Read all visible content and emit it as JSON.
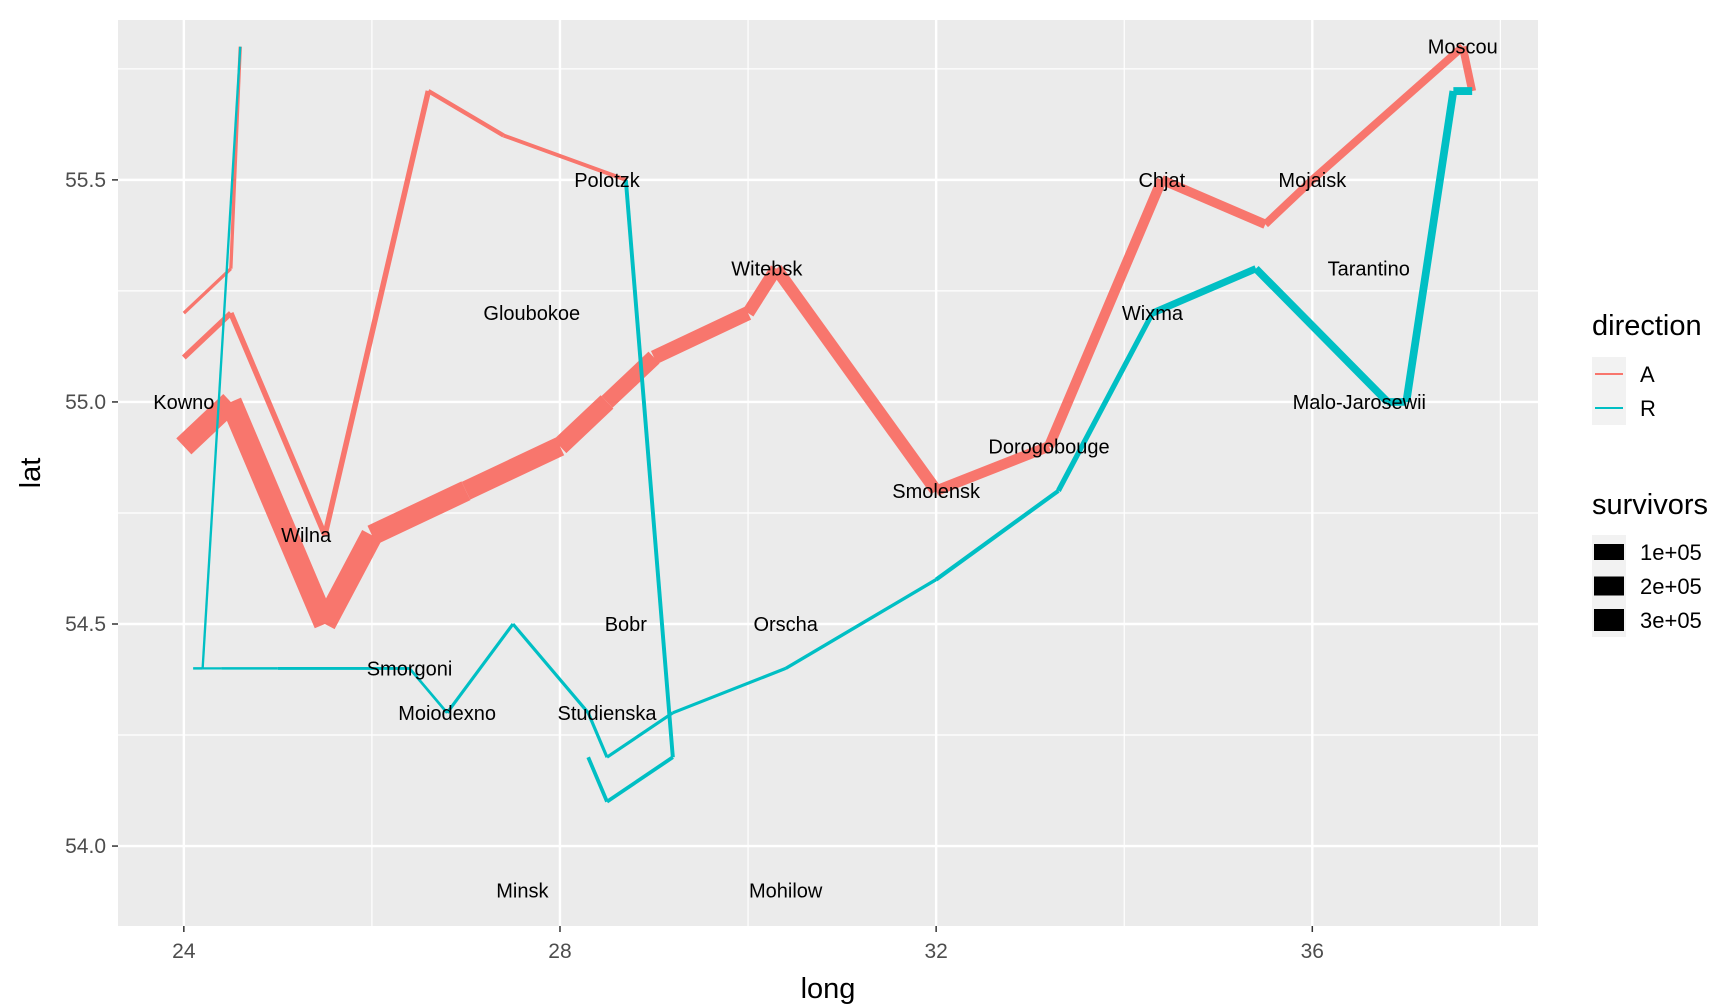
{
  "chart_data": {
    "type": "line",
    "xlabel": "long",
    "ylabel": "lat",
    "xlim": [
      23.3,
      38.4
    ],
    "ylim": [
      53.82,
      55.86
    ],
    "x_ticks": [
      24,
      28,
      32,
      36
    ],
    "x_tick_labels": [
      "24",
      "28",
      "32",
      "36"
    ],
    "x_minor": [
      26,
      30,
      34,
      38
    ],
    "y_ticks": [
      54.0,
      54.5,
      55.0,
      55.5
    ],
    "y_tick_labels": [
      "54.0",
      "54.5",
      "55.0",
      "55.5"
    ],
    "y_minor": [
      54.25,
      54.75,
      55.25,
      55.75
    ],
    "grid": true,
    "legend_position": "right",
    "direction_legend": {
      "title": "direction",
      "entries": [
        {
          "label": "A",
          "color": "#F8766D"
        },
        {
          "label": "R",
          "color": "#00BFC4"
        }
      ]
    },
    "size_legend": {
      "title": "survivors",
      "entries": [
        {
          "label": "1e+05",
          "value": 100000
        },
        {
          "label": "2e+05",
          "value": 200000
        },
        {
          "label": "3e+05",
          "value": 300000
        }
      ]
    },
    "troops": [
      {
        "long": 24.0,
        "lat": 54.9,
        "survivors": 340000,
        "direction": "A",
        "group": 1
      },
      {
        "long": 24.5,
        "lat": 55.0,
        "survivors": 340000,
        "direction": "A",
        "group": 1
      },
      {
        "long": 25.5,
        "lat": 54.5,
        "survivors": 340000,
        "direction": "A",
        "group": 1
      },
      {
        "long": 26.0,
        "lat": 54.7,
        "survivors": 320000,
        "direction": "A",
        "group": 1
      },
      {
        "long": 27.0,
        "lat": 54.8,
        "survivors": 300000,
        "direction": "A",
        "group": 1
      },
      {
        "long": 28.0,
        "lat": 54.9,
        "survivors": 280000,
        "direction": "A",
        "group": 1
      },
      {
        "long": 28.5,
        "lat": 55.0,
        "survivors": 240000,
        "direction": "A",
        "group": 1
      },
      {
        "long": 29.0,
        "lat": 55.1,
        "survivors": 210000,
        "direction": "A",
        "group": 1
      },
      {
        "long": 30.0,
        "lat": 55.2,
        "survivors": 180000,
        "direction": "A",
        "group": 1
      },
      {
        "long": 30.3,
        "lat": 55.3,
        "survivors": 175000,
        "direction": "A",
        "group": 1
      },
      {
        "long": 32.0,
        "lat": 54.8,
        "survivors": 145000,
        "direction": "A",
        "group": 1
      },
      {
        "long": 33.2,
        "lat": 54.9,
        "survivors": 140000,
        "direction": "A",
        "group": 1
      },
      {
        "long": 34.4,
        "lat": 55.5,
        "survivors": 127100,
        "direction": "A",
        "group": 1
      },
      {
        "long": 35.5,
        "lat": 55.4,
        "survivors": 100000,
        "direction": "A",
        "group": 1
      },
      {
        "long": 36.0,
        "lat": 55.5,
        "survivors": 100000,
        "direction": "A",
        "group": 1
      },
      {
        "long": 37.6,
        "lat": 55.8,
        "survivors": 100000,
        "direction": "A",
        "group": 1
      },
      {
        "long": 37.7,
        "lat": 55.7,
        "survivors": 100000,
        "direction": "R",
        "group": 1
      },
      {
        "long": 37.5,
        "lat": 55.7,
        "survivors": 98000,
        "direction": "R",
        "group": 1
      },
      {
        "long": 37.0,
        "lat": 55.0,
        "survivors": 97000,
        "direction": "R",
        "group": 1
      },
      {
        "long": 36.8,
        "lat": 55.0,
        "survivors": 96000,
        "direction": "R",
        "group": 1
      },
      {
        "long": 35.4,
        "lat": 55.3,
        "survivors": 87000,
        "direction": "R",
        "group": 1
      },
      {
        "long": 34.3,
        "lat": 55.2,
        "survivors": 55000,
        "direction": "R",
        "group": 1
      },
      {
        "long": 33.3,
        "lat": 54.8,
        "survivors": 37000,
        "direction": "R",
        "group": 1
      },
      {
        "long": 32.0,
        "lat": 54.6,
        "survivors": 24000,
        "direction": "R",
        "group": 1
      },
      {
        "long": 30.4,
        "lat": 54.4,
        "survivors": 20000,
        "direction": "R",
        "group": 1
      },
      {
        "long": 29.2,
        "lat": 54.3,
        "survivors": 20000,
        "direction": "R",
        "group": 1
      },
      {
        "long": 28.5,
        "lat": 54.2,
        "survivors": 20000,
        "direction": "R",
        "group": 1
      },
      {
        "long": 28.3,
        "lat": 54.3,
        "survivors": 20000,
        "direction": "R",
        "group": 1
      },
      {
        "long": 27.5,
        "lat": 54.5,
        "survivors": 20000,
        "direction": "R",
        "group": 1
      },
      {
        "long": 26.8,
        "lat": 54.3,
        "survivors": 12000,
        "direction": "R",
        "group": 1
      },
      {
        "long": 26.4,
        "lat": 54.4,
        "survivors": 14000,
        "direction": "R",
        "group": 1
      },
      {
        "long": 25.0,
        "lat": 54.4,
        "survivors": 8000,
        "direction": "R",
        "group": 1
      },
      {
        "long": 24.4,
        "lat": 54.4,
        "survivors": 4000,
        "direction": "R",
        "group": 1
      },
      {
        "long": 24.2,
        "lat": 54.4,
        "survivors": 4000,
        "direction": "R",
        "group": 1
      },
      {
        "long": 24.1,
        "lat": 54.4,
        "survivors": 4000,
        "direction": "R",
        "group": 1
      },
      {
        "long": 24.0,
        "lat": 55.1,
        "survivors": 60000,
        "direction": "A",
        "group": 2
      },
      {
        "long": 24.5,
        "lat": 55.2,
        "survivors": 60000,
        "direction": "A",
        "group": 2
      },
      {
        "long": 25.5,
        "lat": 54.7,
        "survivors": 60000,
        "direction": "A",
        "group": 2
      },
      {
        "long": 26.6,
        "lat": 55.7,
        "survivors": 40000,
        "direction": "A",
        "group": 2
      },
      {
        "long": 27.4,
        "lat": 55.6,
        "survivors": 33000,
        "direction": "A",
        "group": 2
      },
      {
        "long": 28.7,
        "lat": 55.5,
        "survivors": 33000,
        "direction": "R",
        "group": 2
      },
      {
        "long": 29.2,
        "lat": 54.2,
        "survivors": 30000,
        "direction": "R",
        "group": 2
      },
      {
        "long": 28.5,
        "lat": 54.1,
        "survivors": 30000,
        "direction": "R",
        "group": 2
      },
      {
        "long": 28.3,
        "lat": 54.2,
        "survivors": 28000,
        "direction": "R",
        "group": 2
      },
      {
        "long": 24.0,
        "lat": 55.2,
        "survivors": 22000,
        "direction": "A",
        "group": 3
      },
      {
        "long": 24.5,
        "lat": 55.3,
        "survivors": 22000,
        "direction": "A",
        "group": 3
      },
      {
        "long": 24.6,
        "lat": 55.8,
        "survivors": 6000,
        "direction": "R",
        "group": 3
      },
      {
        "long": 24.6,
        "lat": 55.8,
        "survivors": 6000,
        "direction": "R",
        "group": 3
      },
      {
        "long": 24.2,
        "lat": 54.4,
        "survivors": 6000,
        "direction": "R",
        "group": 3
      },
      {
        "long": 24.1,
        "lat": 54.4,
        "survivors": 6000,
        "direction": "R",
        "group": 3
      }
    ],
    "cities": [
      {
        "long": 24.0,
        "lat": 55.0,
        "city": "Kowno"
      },
      {
        "long": 25.3,
        "lat": 54.7,
        "city": "Wilna"
      },
      {
        "long": 26.4,
        "lat": 54.4,
        "city": "Smorgoni"
      },
      {
        "long": 26.8,
        "lat": 54.3,
        "city": "Moiodexno"
      },
      {
        "long": 27.7,
        "lat": 55.2,
        "city": "Gloubokoe"
      },
      {
        "long": 27.6,
        "lat": 53.9,
        "city": "Minsk"
      },
      {
        "long": 28.5,
        "lat": 55.5,
        "city": "Polotzk"
      },
      {
        "long": 28.7,
        "lat": 54.5,
        "city": "Bobr"
      },
      {
        "long": 30.2,
        "lat": 55.3,
        "city": "Witebsk"
      },
      {
        "long": 28.5,
        "lat": 54.3,
        "city": "Studienska"
      },
      {
        "long": 30.4,
        "lat": 53.9,
        "city": "Mohilow"
      },
      {
        "long": 32.0,
        "lat": 54.8,
        "city": "Smolensk"
      },
      {
        "long": 33.2,
        "lat": 54.9,
        "city": "Dorogobouge"
      },
      {
        "long": 34.3,
        "lat": 55.2,
        "city": "Wixma"
      },
      {
        "long": 34.4,
        "lat": 55.5,
        "city": "Chjat"
      },
      {
        "long": 36.0,
        "lat": 55.5,
        "city": "Mojaisk"
      },
      {
        "long": 37.6,
        "lat": 55.8,
        "city": "Moscou"
      },
      {
        "long": 36.6,
        "lat": 55.3,
        "city": "Tarantino"
      },
      {
        "long": 36.5,
        "lat": 55.0,
        "city": "Malo-Jarosewii"
      },
      {
        "long": 30.4,
        "lat": 54.5,
        "city": "Orscha"
      }
    ]
  }
}
